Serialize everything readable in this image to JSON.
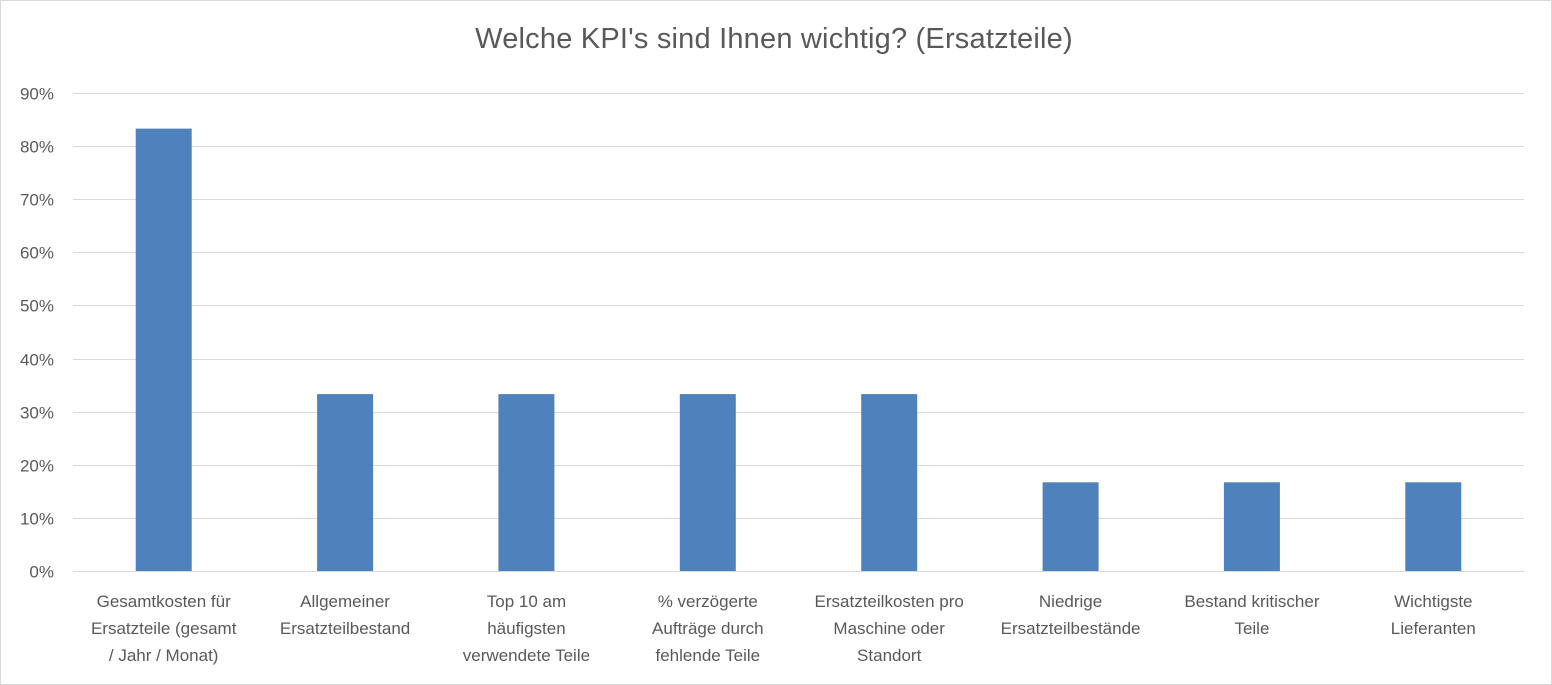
{
  "chart_data": {
    "type": "bar",
    "title": "Welche KPI's sind Ihnen wichtig? (Ersatzteile)",
    "xlabel": "",
    "ylabel": "",
    "ylim": [
      0,
      90
    ],
    "ytick_values": [
      0,
      10,
      20,
      30,
      40,
      50,
      60,
      70,
      80,
      90
    ],
    "ytick_labels": [
      "0%",
      "10%",
      "20%",
      "30%",
      "40%",
      "50%",
      "60%",
      "70%",
      "80%",
      "90%"
    ],
    "grid": true,
    "legend": "none",
    "bar_color": "#4f81bd",
    "categories": [
      [
        "Gesamtkosten für",
        "Ersatzteile (gesamt",
        "/ Jahr / Monat)"
      ],
      [
        "Allgemeiner",
        "Ersatzteilbestand"
      ],
      [
        "Top 10 am",
        "häufigsten",
        "verwendete Teile"
      ],
      [
        "% verzögerte",
        "Aufträge durch",
        "fehlende Teile"
      ],
      [
        "Ersatzteilkosten pro",
        "Maschine oder",
        "Standort"
      ],
      [
        "Niedrige",
        "Ersatzteilbestände"
      ],
      [
        "Bestand kritischer",
        "Teile"
      ],
      [
        "Wichtigste",
        "Lieferanten"
      ]
    ],
    "values": [
      83.3,
      33.3,
      33.3,
      33.3,
      33.3,
      16.7,
      16.7,
      16.7
    ]
  }
}
